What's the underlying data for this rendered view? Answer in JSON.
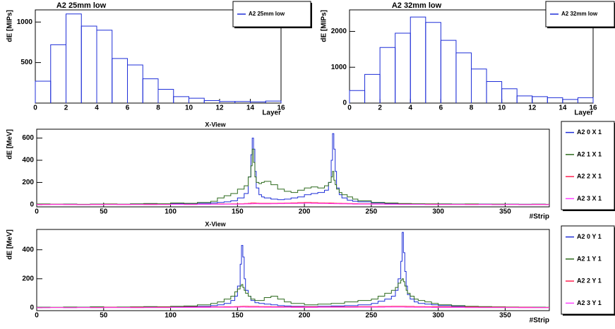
{
  "chart_data": [
    {
      "type": "histogram",
      "title": "A2 25mm low",
      "ylabel": "dE [MIPs]",
      "xlabel": "Layer",
      "bins": [
        0,
        1,
        2,
        3,
        4,
        5,
        6,
        7,
        8,
        9,
        10,
        11,
        12,
        13,
        14,
        15,
        16
      ],
      "series": [
        {
          "name": "A2 25mm low",
          "color": "#1f2fd8",
          "values": [
            270,
            720,
            1100,
            950,
            900,
            550,
            470,
            300,
            170,
            80,
            60,
            30,
            20,
            20,
            15,
            25
          ]
        }
      ],
      "xlim": [
        0,
        16
      ],
      "xticks": [
        0,
        2,
        4,
        6,
        8,
        10,
        12,
        14,
        16
      ],
      "ylim": [
        0,
        1150
      ],
      "yticks": [
        500,
        1000
      ]
    },
    {
      "type": "histogram",
      "title": "A2 32mm low",
      "ylabel": "dE [MIPs]",
      "xlabel": "Layer",
      "bins": [
        0,
        1,
        2,
        3,
        4,
        5,
        6,
        7,
        8,
        9,
        10,
        11,
        12,
        13,
        14,
        15,
        16
      ],
      "series": [
        {
          "name": "A2 32mm low",
          "color": "#1f2fd8",
          "values": [
            350,
            800,
            1550,
            1950,
            2400,
            2250,
            1750,
            1400,
            950,
            600,
            400,
            200,
            180,
            150,
            100,
            150
          ]
        }
      ],
      "xlim": [
        0,
        16
      ],
      "xticks": [
        0,
        2,
        4,
        6,
        8,
        10,
        12,
        14,
        16
      ],
      "ylim": [
        0,
        2600
      ],
      "yticks": [
        0,
        1000,
        2000
      ]
    },
    {
      "type": "line",
      "step": true,
      "title": "X-View",
      "ylabel": "dE [MeV]",
      "xlabel": "#Strip",
      "x": [
        0,
        10,
        20,
        30,
        40,
        50,
        60,
        70,
        80,
        90,
        100,
        110,
        120,
        130,
        135,
        140,
        145,
        150,
        155,
        158,
        160,
        161,
        162,
        163,
        164,
        166,
        168,
        170,
        175,
        180,
        185,
        190,
        195,
        200,
        205,
        210,
        215,
        218,
        220,
        221,
        222,
        223,
        224,
        226,
        228,
        232,
        236,
        240,
        250,
        260,
        270,
        280,
        290,
        300,
        310,
        320,
        330,
        340,
        350,
        360,
        370,
        380
      ],
      "series": [
        {
          "name": "A2 0 X 1",
          "color": "#1f2fd8",
          "values": [
            5,
            3,
            5,
            2,
            4,
            5,
            3,
            6,
            8,
            5,
            10,
            8,
            12,
            15,
            20,
            25,
            35,
            60,
            100,
            250,
            450,
            600,
            500,
            300,
            150,
            90,
            70,
            60,
            50,
            45,
            50,
            60,
            70,
            90,
            100,
            110,
            130,
            200,
            400,
            640,
            500,
            300,
            150,
            90,
            60,
            40,
            30,
            25,
            15,
            10,
            8,
            6,
            5,
            6,
            5,
            4,
            5,
            3,
            4,
            3,
            4,
            2
          ]
        },
        {
          "name": "A2 1 X 1",
          "color": "#2e6b1e",
          "values": [
            6,
            4,
            5,
            3,
            5,
            6,
            4,
            7,
            10,
            8,
            15,
            12,
            20,
            30,
            60,
            80,
            100,
            140,
            170,
            250,
            350,
            500,
            380,
            250,
            200,
            190,
            200,
            210,
            180,
            140,
            120,
            110,
            130,
            150,
            160,
            150,
            170,
            200,
            250,
            300,
            220,
            180,
            140,
            110,
            90,
            70,
            50,
            35,
            20,
            15,
            10,
            8,
            7,
            6,
            5,
            6,
            4,
            5,
            4,
            3,
            4,
            3
          ]
        },
        {
          "name": "A2 2 X 1",
          "color": "#ff2050",
          "values": [
            2,
            3,
            2,
            1,
            2,
            3,
            2,
            2,
            3,
            2,
            4,
            3,
            4,
            5,
            6,
            6,
            7,
            8,
            10,
            12,
            15,
            15,
            15,
            14,
            13,
            12,
            12,
            12,
            12,
            13,
            14,
            16,
            18,
            20,
            18,
            16,
            15,
            15,
            14,
            14,
            13,
            13,
            12,
            12,
            11,
            10,
            9,
            8,
            6,
            5,
            4,
            3,
            3,
            2,
            2,
            2,
            2,
            1,
            2,
            1,
            2,
            1
          ]
        },
        {
          "name": "A2 3 X 1",
          "color": "#ff40ff",
          "values": [
            0,
            1,
            0,
            -1,
            0,
            1,
            0,
            1,
            0,
            1,
            2,
            1,
            2,
            3,
            3,
            4,
            4,
            5,
            6,
            6,
            7,
            7,
            8,
            8,
            8,
            7,
            7,
            7,
            8,
            9,
            10,
            10,
            11,
            12,
            11,
            10,
            10,
            9,
            9,
            9,
            8,
            8,
            8,
            7,
            7,
            6,
            5,
            5,
            4,
            3,
            2,
            2,
            1,
            1,
            1,
            0,
            1,
            0,
            1,
            0,
            0,
            0
          ]
        }
      ],
      "xlim": [
        0,
        383
      ],
      "xticks": [
        0,
        50,
        100,
        150,
        200,
        250,
        300,
        350
      ],
      "ylim": [
        -20,
        680
      ],
      "yticks": [
        0,
        200,
        400,
        600
      ]
    },
    {
      "type": "line",
      "step": true,
      "title": "X-View",
      "ylabel": "dE [MeV]",
      "xlabel": "#Strip",
      "x": [
        0,
        10,
        20,
        30,
        40,
        50,
        60,
        70,
        80,
        90,
        100,
        110,
        120,
        130,
        135,
        140,
        145,
        148,
        150,
        152,
        153,
        154,
        155,
        156,
        158,
        160,
        163,
        166,
        170,
        175,
        180,
        185,
        190,
        200,
        210,
        220,
        230,
        240,
        250,
        255,
        260,
        265,
        268,
        270,
        272,
        273,
        274,
        275,
        276,
        277,
        279,
        282,
        285,
        290,
        295,
        300,
        310,
        320,
        330,
        340,
        350,
        360,
        370,
        380
      ],
      "series": [
        {
          "name": "A2 0 Y 1",
          "color": "#1f2fd8",
          "values": [
            3,
            2,
            4,
            3,
            5,
            3,
            4,
            5,
            6,
            5,
            6,
            8,
            10,
            15,
            20,
            30,
            50,
            80,
            150,
            300,
            430,
            350,
            200,
            120,
            80,
            50,
            35,
            30,
            25,
            20,
            15,
            12,
            10,
            8,
            10,
            12,
            15,
            20,
            30,
            45,
            60,
            80,
            120,
            200,
            320,
            520,
            380,
            250,
            150,
            90,
            60,
            40,
            30,
            25,
            20,
            15,
            10,
            8,
            6,
            5,
            4,
            4,
            3,
            2
          ]
        },
        {
          "name": "A2 1 Y 1",
          "color": "#2e6b1e",
          "values": [
            4,
            3,
            5,
            4,
            6,
            4,
            5,
            6,
            8,
            7,
            10,
            12,
            20,
            30,
            40,
            60,
            80,
            110,
            130,
            150,
            160,
            140,
            120,
            100,
            80,
            60,
            50,
            50,
            70,
            80,
            60,
            40,
            30,
            20,
            25,
            30,
            40,
            50,
            60,
            80,
            100,
            120,
            140,
            170,
            190,
            200,
            180,
            150,
            120,
            100,
            80,
            60,
            50,
            40,
            30,
            20,
            15,
            10,
            8,
            6,
            5,
            4,
            4,
            3
          ]
        },
        {
          "name": "A2 2 Y 1",
          "color": "#ff2050",
          "values": [
            1,
            2,
            1,
            2,
            2,
            3,
            2,
            3,
            3,
            4,
            4,
            5,
            5,
            6,
            6,
            7,
            7,
            8,
            8,
            9,
            9,
            10,
            10,
            10,
            9,
            9,
            9,
            8,
            8,
            7,
            7,
            6,
            6,
            6,
            6,
            7,
            7,
            8,
            8,
            9,
            9,
            10,
            10,
            10,
            10,
            10,
            10,
            10,
            9,
            9,
            9,
            8,
            8,
            7,
            7,
            6,
            5,
            5,
            4,
            4,
            3,
            3,
            2,
            2
          ]
        },
        {
          "name": "A2 3 Y 1",
          "color": "#ff40ff",
          "values": [
            0,
            1,
            0,
            1,
            0,
            1,
            1,
            0,
            1,
            1,
            2,
            2,
            2,
            3,
            3,
            3,
            4,
            4,
            4,
            5,
            5,
            5,
            5,
            4,
            4,
            4,
            4,
            4,
            3,
            3,
            3,
            3,
            2,
            2,
            3,
            3,
            3,
            4,
            4,
            4,
            5,
            5,
            5,
            5,
            5,
            5,
            5,
            4,
            4,
            4,
            4,
            3,
            3,
            3,
            2,
            2,
            2,
            1,
            1,
            1,
            1,
            0,
            0,
            0
          ]
        }
      ],
      "xlim": [
        0,
        383
      ],
      "xticks": [
        0,
        50,
        100,
        150,
        200,
        250,
        300,
        350
      ],
      "ylim": [
        -20,
        540
      ],
      "yticks": [
        0,
        200,
        400
      ]
    }
  ]
}
